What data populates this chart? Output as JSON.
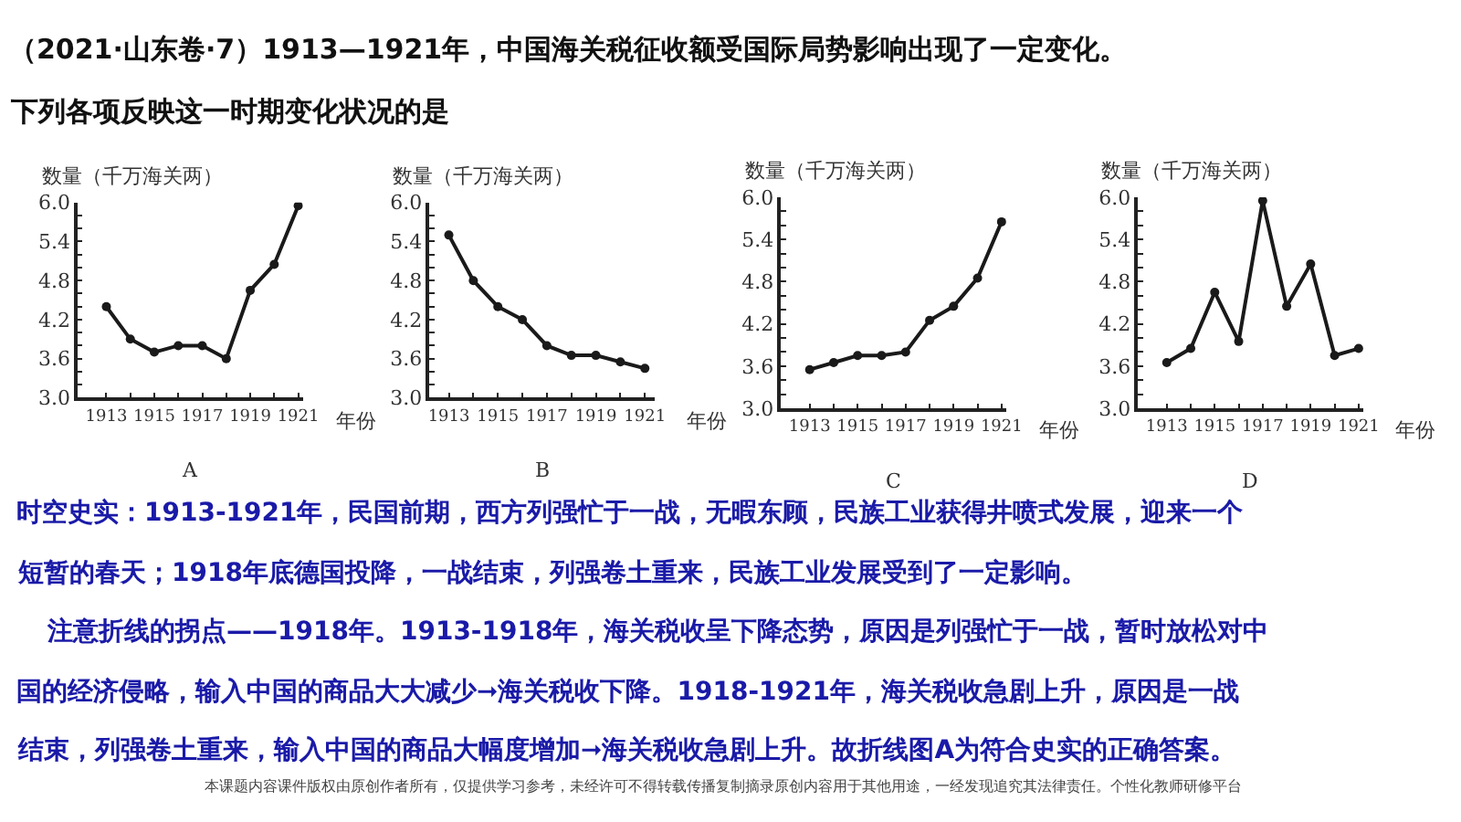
{
  "chart_data": [
    {
      "type": "line",
      "title": "A",
      "ylabel": "数量（千万海关两）",
      "xlabel": "年份",
      "marker": "circle",
      "line_style": "solid",
      "annotations": [
        "（2021·山东卷·7）1913—1921年，中国海关税征收额受国际局势影响出现了一定变化。",
        "下列各项反映这一时期变化状况的是"
      ],
      "x": [
        1913,
        1914,
        1915,
        1916,
        1917,
        1918,
        1919,
        1920,
        1921
      ],
      "series": [
        {
          "color": "#1a1a1a",
          "values": [
            4.4,
            3.9,
            3.7,
            3.8,
            3.8,
            3.6,
            4.65,
            5.05,
            5.95
          ]
        }
      ],
      "xlim": [
        1911.8,
        1921.2
      ],
      "ylim": [
        3.0,
        6.0
      ],
      "xticks": [
        {
          "value": 1913,
          "label": "1913"
        },
        {
          "value": 1914,
          "label": null
        },
        {
          "value": 1915,
          "label": "1915"
        },
        {
          "value": 1916,
          "label": null
        },
        {
          "value": 1917,
          "label": "1917"
        },
        {
          "value": 1918,
          "label": null
        },
        {
          "value": 1919,
          "label": "1919"
        },
        {
          "value": 1920,
          "label": null
        },
        {
          "value": 1921,
          "label": "1921"
        }
      ],
      "yticks": [
        {
          "value": 3.0,
          "label": "3.0"
        },
        {
          "value": 3.2,
          "label": null
        },
        {
          "value": 3.4,
          "label": null
        },
        {
          "value": 3.6,
          "label": "3.6"
        },
        {
          "value": 3.8,
          "label": null
        },
        {
          "value": 4.0,
          "label": null
        },
        {
          "value": 4.2,
          "label": "4.2"
        },
        {
          "value": 4.4,
          "label": null
        },
        {
          "value": 4.6,
          "label": null
        },
        {
          "value": 4.8,
          "label": "4.8"
        },
        {
          "value": 5.0,
          "label": null
        },
        {
          "value": 5.2,
          "label": null
        },
        {
          "value": 5.4,
          "label": "5.4"
        },
        {
          "value": 5.6,
          "label": null
        },
        {
          "value": 5.8,
          "label": null
        },
        {
          "value": 6.0,
          "label": "6.0"
        }
      ]
    },
    {
      "type": "line",
      "title": "B",
      "ylabel": "数量（千万海关两）",
      "xlabel": "年份",
      "marker": "circle",
      "line_style": "solid",
      "x": [
        1913,
        1914,
        1915,
        1916,
        1917,
        1918,
        1919,
        1920,
        1921
      ],
      "series": [
        {
          "color": "#1a1a1a",
          "values": [
            5.5,
            4.8,
            4.4,
            4.2,
            3.8,
            3.65,
            3.65,
            3.55,
            3.45
          ]
        }
      ],
      "xlim": [
        1912.2,
        1921.4
      ],
      "ylim": [
        3.0,
        6.0
      ],
      "xticks": [
        {
          "value": 1913,
          "label": "1913"
        },
        {
          "value": 1914,
          "label": null
        },
        {
          "value": 1915,
          "label": "1915"
        },
        {
          "value": 1916,
          "label": null
        },
        {
          "value": 1917,
          "label": "1917"
        },
        {
          "value": 1918,
          "label": null
        },
        {
          "value": 1919,
          "label": "1919"
        },
        {
          "value": 1920,
          "label": null
        },
        {
          "value": 1921,
          "label": "1921"
        }
      ],
      "yticks": [
        {
          "value": 3.0,
          "label": "3.0"
        },
        {
          "value": 3.2,
          "label": null
        },
        {
          "value": 3.4,
          "label": null
        },
        {
          "value": 3.6,
          "label": "3.6"
        },
        {
          "value": 3.8,
          "label": null
        },
        {
          "value": 4.0,
          "label": null
        },
        {
          "value": 4.2,
          "label": "4.2"
        },
        {
          "value": 4.4,
          "label": null
        },
        {
          "value": 4.6,
          "label": null
        },
        {
          "value": 4.8,
          "label": "4.8"
        },
        {
          "value": 5.0,
          "label": null
        },
        {
          "value": 5.2,
          "label": null
        },
        {
          "value": 5.4,
          "label": "5.4"
        },
        {
          "value": 5.6,
          "label": null
        },
        {
          "value": 5.8,
          "label": null
        },
        {
          "value": 6.0,
          "label": "6.0"
        }
      ]
    },
    {
      "type": "line",
      "title": "C",
      "ylabel": "数量（千万海关两）",
      "xlabel": "年份",
      "marker": "circle",
      "line_style": "solid",
      "x": [
        1913,
        1914,
        1915,
        1916,
        1917,
        1918,
        1919,
        1920,
        1921
      ],
      "series": [
        {
          "color": "#1a1a1a",
          "values": [
            3.55,
            3.65,
            3.75,
            3.75,
            3.8,
            4.25,
            4.45,
            4.85,
            5.65
          ]
        }
      ],
      "xlim": [
        1911.8,
        1921.2
      ],
      "ylim": [
        3.0,
        6.0
      ],
      "xticks": [
        {
          "value": 1913,
          "label": "1913"
        },
        {
          "value": 1914,
          "label": null
        },
        {
          "value": 1915,
          "label": "1915"
        },
        {
          "value": 1916,
          "label": null
        },
        {
          "value": 1917,
          "label": "1917"
        },
        {
          "value": 1918,
          "label": null
        },
        {
          "value": 1919,
          "label": "1919"
        },
        {
          "value": 1920,
          "label": null
        },
        {
          "value": 1921,
          "label": "1921"
        }
      ],
      "yticks": [
        {
          "value": 3.0,
          "label": "3.0"
        },
        {
          "value": 3.2,
          "label": null
        },
        {
          "value": 3.4,
          "label": null
        },
        {
          "value": 3.6,
          "label": "3.6"
        },
        {
          "value": 3.8,
          "label": null
        },
        {
          "value": 4.0,
          "label": null
        },
        {
          "value": 4.2,
          "label": "4.2"
        },
        {
          "value": 4.4,
          "label": null
        },
        {
          "value": 4.6,
          "label": null
        },
        {
          "value": 4.8,
          "label": "4.8"
        },
        {
          "value": 5.0,
          "label": null
        },
        {
          "value": 5.2,
          "label": null
        },
        {
          "value": 5.4,
          "label": "5.4"
        },
        {
          "value": 5.6,
          "label": null
        },
        {
          "value": 5.8,
          "label": null
        },
        {
          "value": 6.0,
          "label": "6.0"
        }
      ]
    },
    {
      "type": "line",
      "title": "D",
      "ylabel": "数量（千万海关两）",
      "xlabel": "年份",
      "marker": "circle",
      "line_style": "solid",
      "annotations": [
        "时空史实：1913-1921年，民国前期，西方列强忙于一战，无暇东顾，民族工业获得井喷式发展，迎来一个",
        "短暂的春天；1918年底德国投降，一战结束，列强卷土重来，民族工业发展受到了一定影响。",
        "注意折线的拐点——1918年。1913-1918年，海关税收呈下降态势，原因是列强忙于一战，暂时放松对中",
        "国的经济侵略，输入中国的商品大大减少➞海关税收下降。1918-1921年，海关税收急剧上升，原因是一战",
        "结束，列强卷土重来，输入中国的商品大幅度增加➞海关税收急剧上升。故折线图A为符合史实的正确答案。",
        "本课题内容课件版权由原创作者所有，仅提供学习参考，未经许可不得转载传播复制摘录原创内容用于其他用途，一经发现追究其法律责任。个性化教师研修平台"
      ],
      "x": [
        1913,
        1914,
        1915,
        1916,
        1917,
        1918,
        1919,
        1920,
        1921
      ],
      "series": [
        {
          "color": "#1a1a1a",
          "values": [
            3.65,
            3.85,
            4.65,
            3.95,
            5.95,
            4.45,
            5.05,
            3.75,
            3.85
          ]
        }
      ],
      "xlim": [
        1911.8,
        1921.2
      ],
      "ylim": [
        3.0,
        6.0
      ],
      "xticks": [
        {
          "value": 1913,
          "label": "1913"
        },
        {
          "value": 1914,
          "label": null
        },
        {
          "value": 1915,
          "label": "1915"
        },
        {
          "value": 1916,
          "label": null
        },
        {
          "value": 1917,
          "label": "1917"
        },
        {
          "value": 1918,
          "label": null
        },
        {
          "value": 1919,
          "label": "1919"
        },
        {
          "value": 1920,
          "label": null
        },
        {
          "value": 1921,
          "label": "1921"
        }
      ],
      "yticks": [
        {
          "value": 3.0,
          "label": "3.0"
        },
        {
          "value": 3.2,
          "label": null
        },
        {
          "value": 3.4,
          "label": null
        },
        {
          "value": 3.6,
          "label": "3.6"
        },
        {
          "value": 3.8,
          "label": null
        },
        {
          "value": 4.0,
          "label": null
        },
        {
          "value": 4.2,
          "label": "4.2"
        },
        {
          "value": 4.4,
          "label": null
        },
        {
          "value": 4.6,
          "label": null
        },
        {
          "value": 4.8,
          "label": "4.8"
        },
        {
          "value": 5.0,
          "label": null
        },
        {
          "value": 5.2,
          "label": null
        },
        {
          "value": 5.4,
          "label": "5.4"
        },
        {
          "value": 5.6,
          "label": null
        },
        {
          "value": 5.8,
          "label": null
        },
        {
          "value": 6.0,
          "label": "6.0"
        }
      ]
    }
  ]
}
